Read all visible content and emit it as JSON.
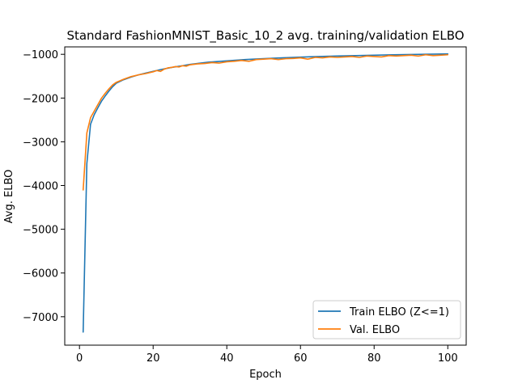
{
  "chart_data": {
    "type": "line",
    "title": "Standard FashionMNIST_Basic_10_2 avg. training/validation ELBO",
    "xlabel": "Epoch",
    "ylabel": "Avg. ELBO",
    "xlim": [
      -4,
      105
    ],
    "ylim": [
      -7650,
      -830
    ],
    "xticks": [
      0,
      20,
      40,
      60,
      80,
      100
    ],
    "yticks": [
      -7000,
      -6000,
      -5000,
      -4000,
      -3000,
      -2000,
      -1000
    ],
    "grid": false,
    "legend_position": "lower-right",
    "series": [
      {
        "name": "Train ELBO (Z<=1)",
        "color": "#1f77b4",
        "x": [
          1,
          2,
          3,
          4,
          5,
          6,
          7,
          8,
          9,
          10,
          12,
          14,
          16,
          18,
          20,
          22,
          25,
          28,
          30,
          35,
          40,
          45,
          50,
          55,
          60,
          65,
          70,
          75,
          80,
          85,
          90,
          95,
          100
        ],
        "y": [
          -7350,
          -3500,
          -2600,
          -2380,
          -2220,
          -2070,
          -1950,
          -1840,
          -1740,
          -1660,
          -1580,
          -1520,
          -1470,
          -1430,
          -1390,
          -1350,
          -1300,
          -1260,
          -1230,
          -1180,
          -1150,
          -1120,
          -1100,
          -1080,
          -1065,
          -1050,
          -1040,
          -1030,
          -1020,
          -1010,
          -1005,
          -998,
          -990
        ]
      },
      {
        "name": "Val. ELBO",
        "color": "#ff7f0e",
        "x": [
          1,
          2,
          3,
          4,
          5,
          6,
          7,
          8,
          9,
          10,
          12,
          14,
          16,
          18,
          20,
          21,
          22,
          23,
          24,
          25,
          26,
          27,
          28,
          29,
          30,
          32,
          34,
          36,
          38,
          40,
          42,
          44,
          46,
          48,
          50,
          52,
          54,
          56,
          58,
          60,
          62,
          64,
          66,
          68,
          70,
          72,
          74,
          76,
          78,
          80,
          82,
          84,
          86,
          88,
          90,
          92,
          94,
          96,
          98,
          100
        ],
        "y": [
          -4100,
          -2800,
          -2450,
          -2300,
          -2150,
          -2000,
          -1890,
          -1790,
          -1700,
          -1640,
          -1570,
          -1510,
          -1470,
          -1440,
          -1400,
          -1370,
          -1390,
          -1340,
          -1310,
          -1300,
          -1280,
          -1290,
          -1260,
          -1270,
          -1240,
          -1220,
          -1210,
          -1190,
          -1200,
          -1170,
          -1160,
          -1140,
          -1160,
          -1120,
          -1110,
          -1100,
          -1120,
          -1100,
          -1095,
          -1080,
          -1110,
          -1070,
          -1080,
          -1060,
          -1070,
          -1060,
          -1050,
          -1070,
          -1040,
          -1050,
          -1060,
          -1030,
          -1040,
          -1030,
          -1020,
          -1040,
          -1010,
          -1030,
          -1020,
          -1010
        ]
      }
    ]
  }
}
